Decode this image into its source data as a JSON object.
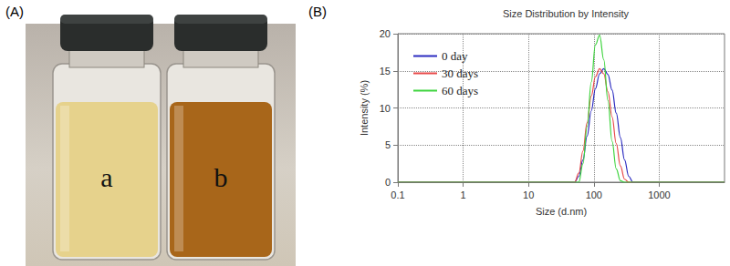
{
  "panel_labels": [
    "(A)",
    "(B)"
  ],
  "photo": {
    "vial_labels": [
      "a",
      "b"
    ]
  },
  "chart_data": {
    "type": "line",
    "title": "Size Distribution by Intensity",
    "x_label": "Size (d.nm)",
    "y_label": "Intensity (%)",
    "x": [
      0.1,
      50.7,
      58.8,
      68.1,
      78.8,
      91.3,
      105.7,
      122.4,
      141.8,
      164.2,
      190.1,
      220.2,
      255.0,
      295.3,
      342.0,
      396.1,
      10000
    ],
    "series": [
      {
        "name": "0 day",
        "color": "#2b2bc0",
        "values": [
          0,
          0,
          0.8,
          3.0,
          6.2,
          9.6,
          12.6,
          14.6,
          15.3,
          14.5,
          12.4,
          9.3,
          6.0,
          3.0,
          0.8,
          0,
          0
        ]
      },
      {
        "name": "30 days",
        "color": "#e84a4a",
        "values": [
          0,
          0,
          1.2,
          4.2,
          8.0,
          11.6,
          14.2,
          15.3,
          14.6,
          12.2,
          8.8,
          5.2,
          2.2,
          0.4,
          0,
          0,
          0
        ]
      },
      {
        "name": "60 days",
        "color": "#3ed43e",
        "values": [
          0,
          0,
          0,
          2.5,
          7.5,
          13.5,
          18.5,
          19.8,
          16.5,
          11.0,
          5.5,
          1.8,
          0.2,
          0,
          0,
          0,
          0
        ]
      }
    ],
    "xlim": [
      0.1,
      10000
    ],
    "xticks": [
      0.1,
      1,
      10,
      100,
      1000
    ],
    "ylim": [
      0,
      20
    ],
    "yticks": [
      0,
      5,
      10,
      15,
      20
    ],
    "log": "x",
    "grid": true,
    "legend": "upper left"
  }
}
